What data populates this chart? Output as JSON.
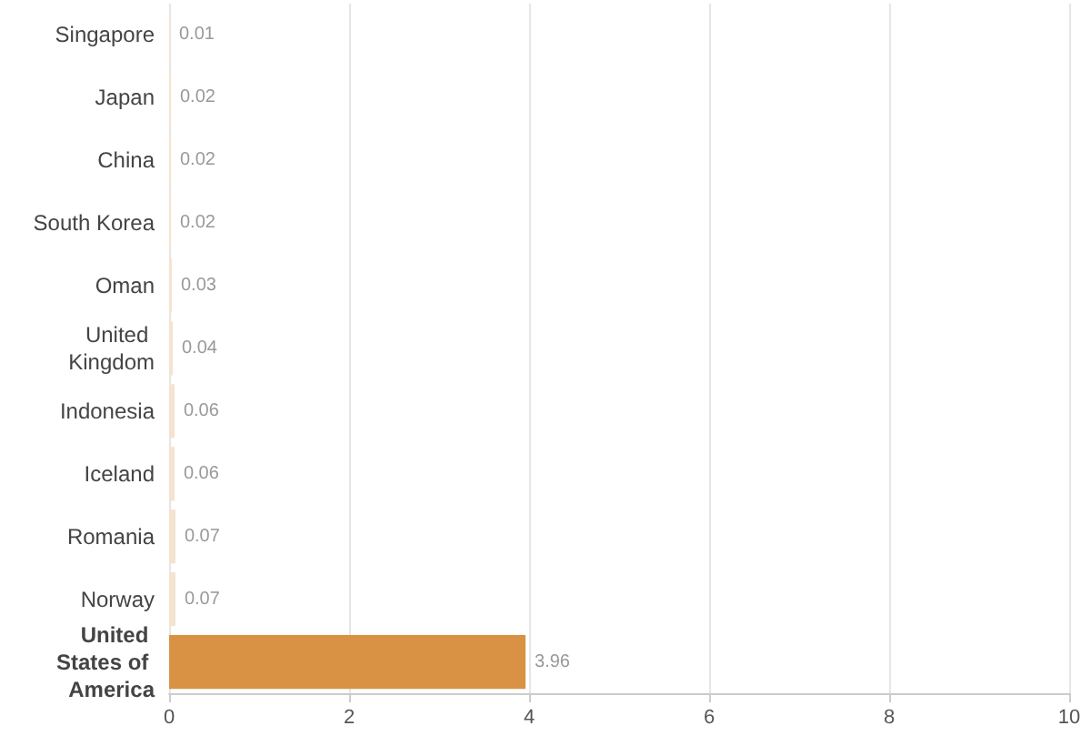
{
  "chart_data": {
    "type": "bar",
    "orientation": "horizontal",
    "categories": [
      "Singapore",
      "Japan",
      "China",
      "South Korea",
      "Oman",
      "United Kingdom",
      "Indonesia",
      "Iceland",
      "Romania",
      "Norway",
      "United States of America"
    ],
    "values": [
      0.01,
      0.02,
      0.02,
      0.02,
      0.03,
      0.04,
      0.06,
      0.06,
      0.07,
      0.07,
      3.96
    ],
    "colors": [
      "#f5e3cf",
      "#f5e3cf",
      "#f5e3cf",
      "#f5e3cf",
      "#f5e3cf",
      "#f5e3cf",
      "#f5e3cf",
      "#f5e3cf",
      "#f5e3cf",
      "#f5e3cf",
      "#d99243"
    ],
    "xlim": [
      0,
      10
    ],
    "xticks": [
      0,
      2,
      4,
      6,
      8,
      10
    ],
    "grid": "x",
    "data_labels": true
  }
}
